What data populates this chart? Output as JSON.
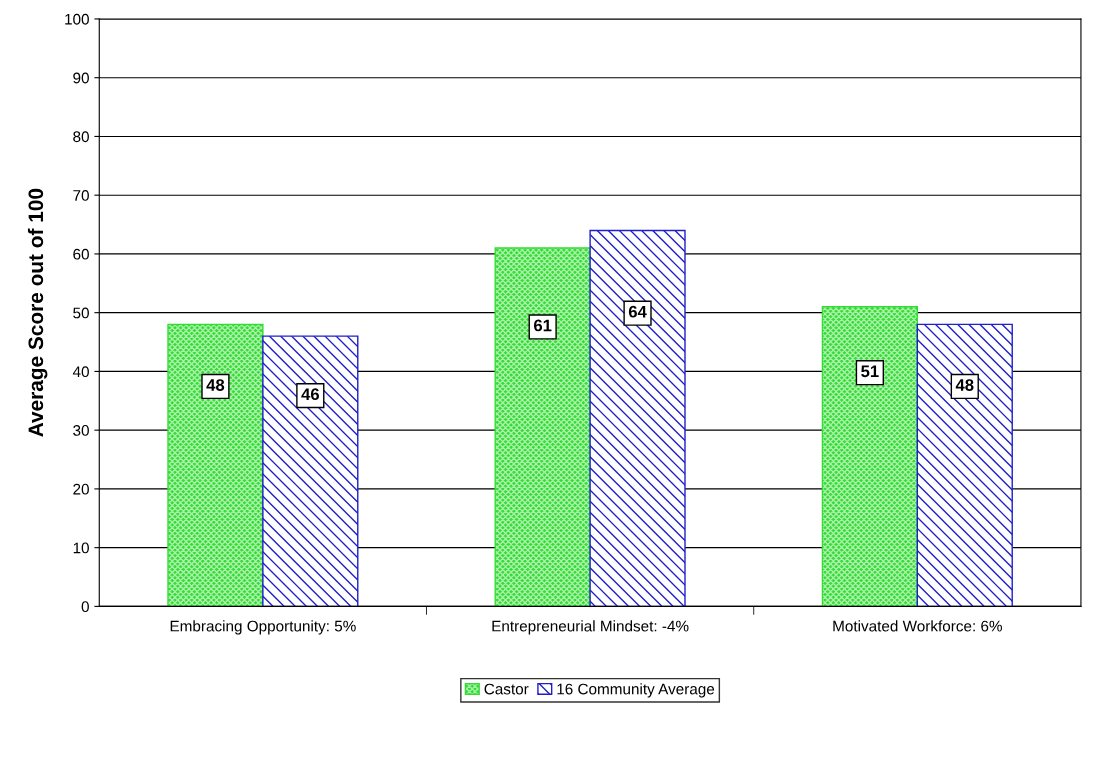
{
  "chart_data": {
    "type": "bar",
    "ylabel": "Average Score out of 100",
    "categories": [
      "Embracing Opportunity: 5%",
      "Entrepreneurial Mindset: -4%",
      "Motivated Workforce: 6%"
    ],
    "series": [
      {
        "name": "Castor",
        "color": "#33dd33",
        "values": [
          48,
          61,
          51
        ]
      },
      {
        "name": "16 Community Average",
        "color": "#1f1fcc",
        "values": [
          46,
          64,
          48
        ]
      }
    ],
    "ylim": [
      0,
      100
    ],
    "yticks": [
      0,
      10,
      20,
      30,
      40,
      50,
      60,
      70,
      80,
      90,
      100
    ],
    "grid": "y",
    "legend": "bottom",
    "data_labels": true
  }
}
